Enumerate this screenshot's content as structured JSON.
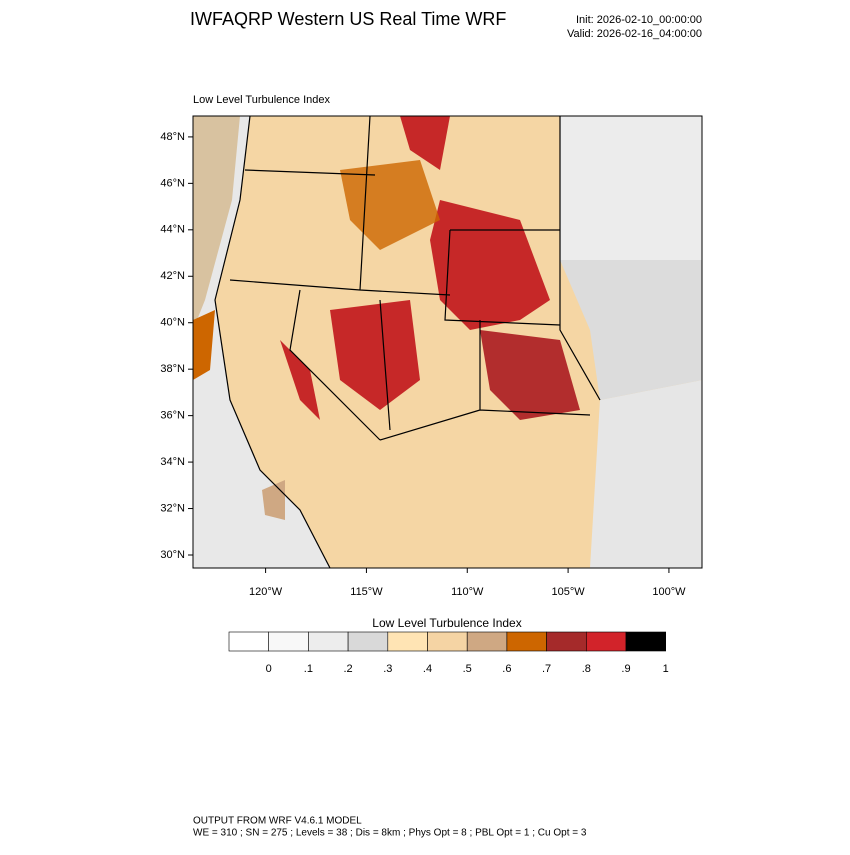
{
  "header": {
    "title": "IWFAQRP Western US Real Time WRF",
    "init": "Init: 2026-02-10_00:00:00",
    "valid": "Valid: 2026-02-16_04:00:00"
  },
  "map": {
    "subtitle": "Low Level Turbulence Index",
    "lat_range": [
      29.44,
      48.9
    ],
    "lon_range": [
      -123.6,
      -98.36
    ],
    "lat_ticks": [
      {
        "value": 48,
        "label": "48°N"
      },
      {
        "value": 46,
        "label": "46°N"
      },
      {
        "value": 44,
        "label": "44°N"
      },
      {
        "value": 42,
        "label": "42°N"
      },
      {
        "value": 40,
        "label": "40°N"
      },
      {
        "value": 38,
        "label": "38°N"
      },
      {
        "value": 36,
        "label": "36°N"
      },
      {
        "value": 34,
        "label": "34°N"
      },
      {
        "value": 32,
        "label": "32°N"
      },
      {
        "value": 30,
        "label": "30°N"
      }
    ],
    "lon_ticks": [
      {
        "value": -120,
        "label": "120°W"
      },
      {
        "value": -115,
        "label": "115°W"
      },
      {
        "value": -110,
        "label": "110°W"
      },
      {
        "value": -105,
        "label": "105°W"
      },
      {
        "value": -100,
        "label": "100°W"
      }
    ]
  },
  "colorbar": {
    "title": "Low Level Turbulence Index",
    "colors": [
      "#ffffff",
      "#f8f8f8",
      "#ededed",
      "#d9d9d9",
      "#ffe4b4",
      "#f5d4a4",
      "#cfa883",
      "#cd6600",
      "#a52a2a",
      "#d2232a",
      "#000000"
    ],
    "ticks": [
      0,
      {
        "value": 0.1,
        "label": ".1"
      },
      {
        "value": 0.2,
        "label": ".2"
      },
      {
        "value": 0.3,
        "label": ".3"
      },
      {
        "value": 0.4,
        "label": ".4"
      },
      {
        "value": 0.5,
        "label": ".5"
      },
      {
        "value": 0.6,
        "label": ".6"
      },
      {
        "value": 0.7,
        "label": ".7"
      },
      {
        "value": 0.8,
        "label": ".8"
      },
      {
        "value": 0.9,
        "label": ".9"
      },
      1
    ]
  },
  "footer": {
    "line1": "OUTPUT FROM WRF V4.6.1 MODEL",
    "line2": "WE = 310 ; SN = 275 ; Levels = 38 ; Dis = 8km ; Phys Opt = 8 ; PBL Opt = 1 ; Cu Opt = 3"
  }
}
